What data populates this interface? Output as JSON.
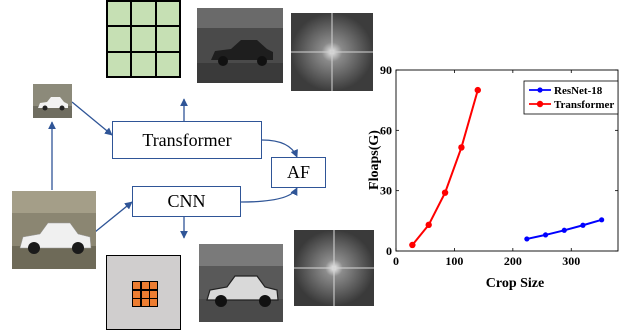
{
  "diagram": {
    "transformer_label": "Transformer",
    "cnn_label": "CNN",
    "af_label": "AF"
  },
  "chart_data": {
    "type": "line",
    "xlabel": "Crop Size",
    "ylabel": "Floaps(G)",
    "xlim": [
      0,
      380
    ],
    "ylim": [
      0,
      90
    ],
    "xticks": [
      0,
      100,
      200,
      300
    ],
    "yticks": [
      0,
      30,
      60,
      90
    ],
    "legend_position": "top-right",
    "series": [
      {
        "name": "ResNet-18",
        "color": "#0000ff",
        "x": [
          224,
          256,
          288,
          320,
          352
        ],
        "y": [
          6,
          8,
          10.3,
          12.8,
          15.5
        ]
      },
      {
        "name": "Transformer",
        "color": "#ff0000",
        "x": [
          28,
          56,
          84,
          112,
          140
        ],
        "y": [
          3,
          13,
          29,
          51.5,
          80
        ]
      }
    ]
  }
}
